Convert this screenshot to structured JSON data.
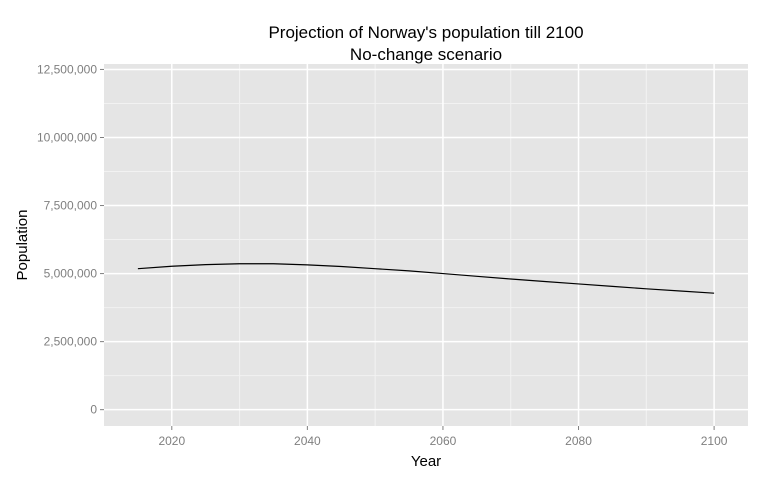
{
  "chart_data": {
    "type": "line",
    "title": "Projection of Norway's population till 2100",
    "subtitle": "No-change scenario",
    "xlabel": "Year",
    "ylabel": "Population",
    "xlim": [
      2010,
      2105
    ],
    "ylim": [
      -600000,
      12700000
    ],
    "x_ticks": [
      2020,
      2040,
      2060,
      2080,
      2100
    ],
    "x_tick_labels": [
      "2020",
      "2040",
      "2060",
      "2080",
      "2100"
    ],
    "y_ticks": [
      0,
      2500000,
      5000000,
      7500000,
      10000000,
      12500000
    ],
    "y_tick_labels": [
      "0",
      "2,500,000",
      "5,000,000",
      "7,500,000",
      "10,000,000",
      "12,500,000"
    ],
    "grid": true,
    "colors": {
      "panel": "#e5e5e5",
      "grid_major": "#ffffff",
      "grid_minor": "#f2f2f2",
      "line": "#000000"
    },
    "series": [
      {
        "x": [
          2015,
          2020,
          2025,
          2030,
          2035,
          2040,
          2045,
          2050,
          2055,
          2060,
          2065,
          2070,
          2075,
          2080,
          2085,
          2090,
          2095,
          2100
        ],
        "values": [
          5180000,
          5270000,
          5330000,
          5360000,
          5360000,
          5320000,
          5260000,
          5180000,
          5100000,
          5000000,
          4900000,
          4800000,
          4710000,
          4620000,
          4530000,
          4440000,
          4360000,
          4280000
        ]
      }
    ]
  }
}
